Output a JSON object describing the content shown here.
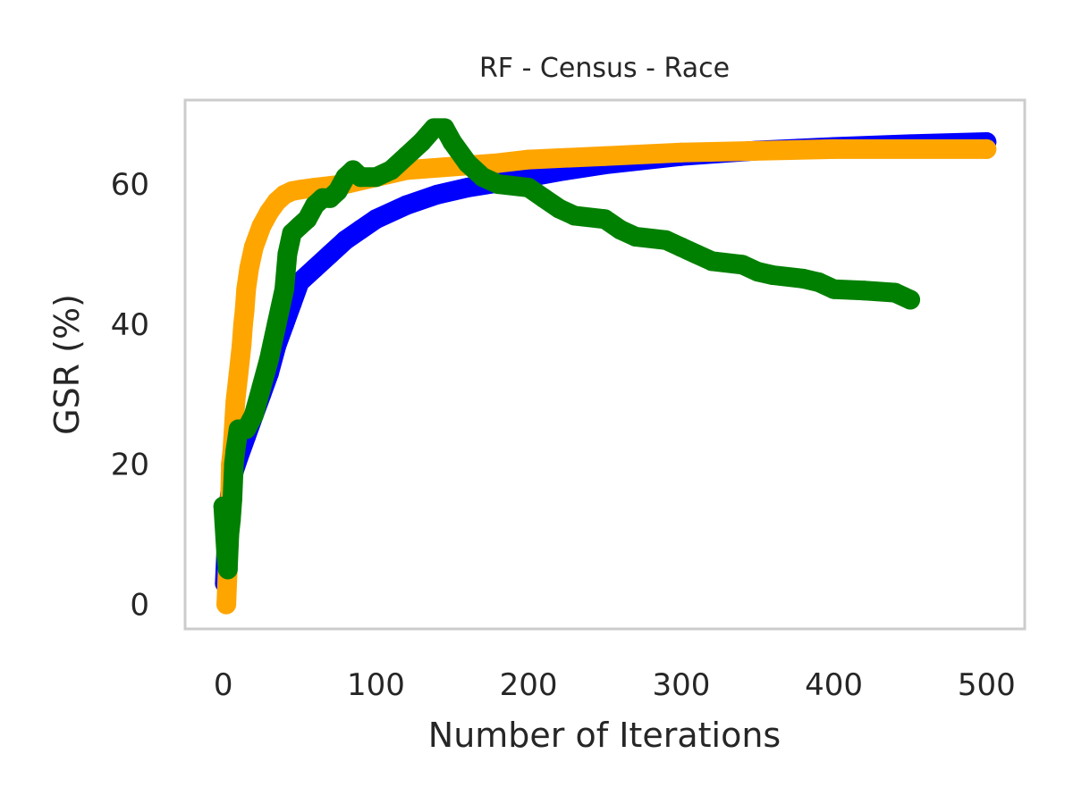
{
  "chart_data": {
    "type": "line",
    "title": "RF - Census - Race",
    "xlabel": "Number of Iterations",
    "ylabel": "GSR (%)",
    "xlim": [
      -25,
      525
    ],
    "ylim": [
      -3.5,
      72
    ],
    "xticks": [
      0,
      100,
      200,
      300,
      400,
      500
    ],
    "yticks": [
      0,
      20,
      40,
      60
    ],
    "xtick_labels": [
      "0",
      "100",
      "200",
      "300",
      "400",
      "500"
    ],
    "ytick_labels": [
      "0",
      "20",
      "40",
      "60"
    ],
    "grid": false,
    "series": [
      {
        "name": "blue",
        "color": "#0000ff",
        "points": [
          [
            1,
            3
          ],
          [
            2,
            8
          ],
          [
            3,
            12
          ],
          [
            4,
            15
          ],
          [
            5,
            17
          ],
          [
            7,
            19
          ],
          [
            10,
            21
          ],
          [
            15,
            24
          ],
          [
            20,
            27
          ],
          [
            25,
            30
          ],
          [
            30,
            33
          ],
          [
            35,
            37
          ],
          [
            40,
            40
          ],
          [
            45,
            43
          ],
          [
            50,
            46
          ],
          [
            60,
            48
          ],
          [
            70,
            50
          ],
          [
            80,
            52
          ],
          [
            90,
            53.5
          ],
          [
            100,
            55
          ],
          [
            120,
            57
          ],
          [
            140,
            58.5
          ],
          [
            160,
            59.5
          ],
          [
            180,
            60.2
          ],
          [
            200,
            61
          ],
          [
            220,
            61.8
          ],
          [
            250,
            62.8
          ],
          [
            300,
            64
          ],
          [
            350,
            64.8
          ],
          [
            400,
            65.3
          ],
          [
            450,
            65.7
          ],
          [
            500,
            66
          ]
        ]
      },
      {
        "name": "orange",
        "color": "#ffa500",
        "points": [
          [
            2,
            0
          ],
          [
            4,
            11
          ],
          [
            5,
            20
          ],
          [
            6,
            22
          ],
          [
            8,
            29
          ],
          [
            10,
            33
          ],
          [
            12,
            37
          ],
          [
            13,
            40
          ],
          [
            14,
            42
          ],
          [
            15,
            45
          ],
          [
            17,
            48
          ],
          [
            20,
            51
          ],
          [
            25,
            54
          ],
          [
            30,
            56
          ],
          [
            35,
            57.5
          ],
          [
            40,
            58.5
          ],
          [
            45,
            59
          ],
          [
            50,
            59.2
          ],
          [
            60,
            59.5
          ],
          [
            80,
            60
          ],
          [
            100,
            61
          ],
          [
            120,
            62
          ],
          [
            150,
            62.5
          ],
          [
            180,
            63
          ],
          [
            200,
            63.5
          ],
          [
            250,
            64
          ],
          [
            300,
            64.5
          ],
          [
            400,
            65
          ],
          [
            500,
            65
          ]
        ]
      },
      {
        "name": "green",
        "color": "#008000",
        "points": [
          [
            0,
            14
          ],
          [
            2,
            7
          ],
          [
            3,
            5
          ],
          [
            4,
            10
          ],
          [
            5,
            12
          ],
          [
            6,
            15
          ],
          [
            7,
            20
          ],
          [
            8,
            22
          ],
          [
            10,
            25
          ],
          [
            15,
            25
          ],
          [
            20,
            27
          ],
          [
            25,
            31
          ],
          [
            30,
            35
          ],
          [
            35,
            40
          ],
          [
            40,
            45
          ],
          [
            42,
            50
          ],
          [
            45,
            53
          ],
          [
            50,
            54
          ],
          [
            55,
            55
          ],
          [
            60,
            57
          ],
          [
            65,
            58
          ],
          [
            70,
            58
          ],
          [
            75,
            59
          ],
          [
            80,
            61
          ],
          [
            85,
            62
          ],
          [
            90,
            61
          ],
          [
            100,
            61
          ],
          [
            110,
            62
          ],
          [
            120,
            64
          ],
          [
            130,
            66
          ],
          [
            138,
            68
          ],
          [
            145,
            68
          ],
          [
            150,
            66
          ],
          [
            160,
            63
          ],
          [
            170,
            61
          ],
          [
            180,
            60
          ],
          [
            200,
            59.5
          ],
          [
            210,
            58
          ],
          [
            220,
            56.5
          ],
          [
            230,
            55.5
          ],
          [
            250,
            55
          ],
          [
            260,
            53.5
          ],
          [
            270,
            52.5
          ],
          [
            290,
            52
          ],
          [
            300,
            51
          ],
          [
            310,
            50
          ],
          [
            320,
            49
          ],
          [
            340,
            48.5
          ],
          [
            350,
            47.5
          ],
          [
            360,
            47
          ],
          [
            380,
            46.5
          ],
          [
            390,
            46
          ],
          [
            400,
            45
          ],
          [
            420,
            44.8
          ],
          [
            440,
            44.5
          ],
          [
            450,
            43.5
          ]
        ]
      }
    ]
  }
}
